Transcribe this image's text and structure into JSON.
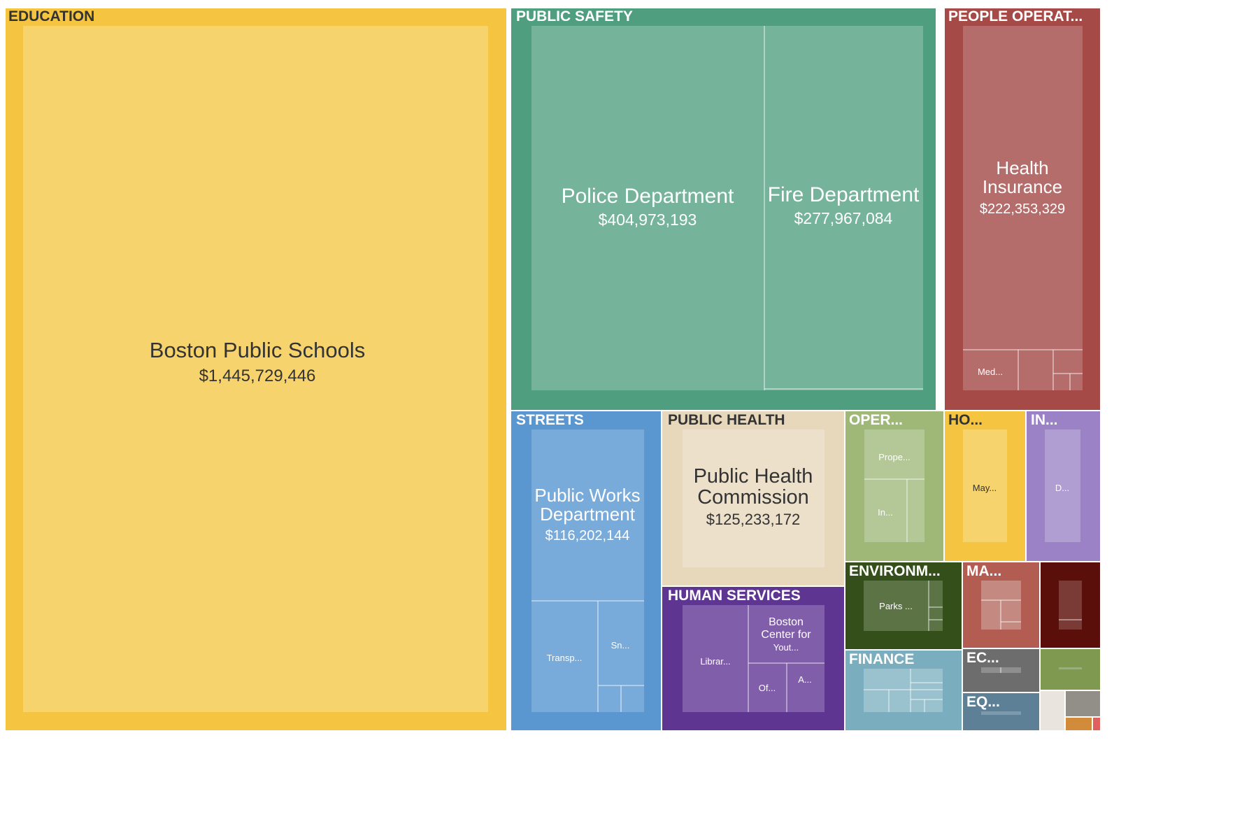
{
  "chart_data": {
    "type": "treemap",
    "groups": [
      {
        "name": "EDUCATION",
        "color": "#f5c542",
        "leaf_color": "#f6d36c",
        "text_color": "#333333",
        "items": [
          {
            "name": "Boston Public Schools",
            "value": "$1,445,729,446"
          }
        ]
      },
      {
        "name": "PUBLIC SAFETY",
        "color": "#4f9e80",
        "leaf_color": "#75b39b",
        "text_color": "#ffffff",
        "items": [
          {
            "name": "Police Department",
            "value": "$404,973,193"
          },
          {
            "name": "Fire Department",
            "value": "$277,967,084"
          }
        ]
      },
      {
        "name": "PEOPLE OPERAT...",
        "color": "#a64a48",
        "leaf_color": "#b56d6b",
        "text_color": "#ffffff",
        "items": [
          {
            "name": "Health Insurance",
            "value": "$222,353,329"
          },
          {
            "name": "Med..."
          }
        ]
      },
      {
        "name": "STREETS",
        "color": "#5a96d0",
        "leaf_color": "#78aada",
        "text_color": "#ffffff",
        "items": [
          {
            "name": "Public Works Department",
            "value": "$116,202,144"
          },
          {
            "name": "Transp..."
          },
          {
            "name": "Sn..."
          }
        ]
      },
      {
        "name": "PUBLIC HEALTH",
        "color": "#e8d8bb",
        "leaf_color": "#ede0cb",
        "text_color": "#333333",
        "items": [
          {
            "name": "Public Health Commission",
            "value": "$125,233,172"
          }
        ]
      },
      {
        "name": "HUMAN SERVICES",
        "color": "#5e3591",
        "leaf_color": "#805ea9",
        "text_color": "#ffffff",
        "items": [
          {
            "name": "Librar..."
          },
          {
            "name": "Boston Center for Yout..."
          },
          {
            "name": "Of..."
          },
          {
            "name": "A..."
          }
        ]
      },
      {
        "name": "OPER...",
        "color": "#9fb878",
        "leaf_color": "#b4c797",
        "text_color": "#ffffff",
        "items": [
          {
            "name": "Prope..."
          },
          {
            "name": "In..."
          }
        ]
      },
      {
        "name": "HO...",
        "color": "#f5c542",
        "leaf_color": "#f6d36c",
        "text_color": "#333333",
        "items": [
          {
            "name": "May..."
          }
        ]
      },
      {
        "name": "IN...",
        "color": "#9b82c6",
        "leaf_color": "#b09ed2",
        "text_color": "#ffffff",
        "items": [
          {
            "name": "D..."
          }
        ]
      },
      {
        "name": "ENVIRONM...",
        "color": "#344f1a",
        "leaf_color": "#5c7346",
        "text_color": "#ffffff",
        "items": [
          {
            "name": "Parks ..."
          }
        ]
      },
      {
        "name": "MA...",
        "color": "#b35d52",
        "leaf_color": "#c48a82",
        "text_color": "#ffffff",
        "items": []
      },
      {
        "name": "FINANCE",
        "color": "#7aadbe",
        "leaf_color": "#99c1ce",
        "text_color": "#ffffff",
        "items": []
      },
      {
        "name": "EC...",
        "color": "#6d6d6d",
        "leaf_color": "#8e8e8e",
        "text_color": "#ffffff",
        "items": []
      },
      {
        "name": "EQ...",
        "color": "#5d8097",
        "leaf_color": "#7d99ac",
        "text_color": "#ffffff",
        "items": []
      },
      {
        "name": "",
        "color": "#5a0f0a",
        "leaf_color": "#7a3a35",
        "text_color": "#ffffff",
        "items": []
      },
      {
        "name": "",
        "color": "#7f9a50",
        "leaf_color": "#9ab07a",
        "text_color": "#ffffff",
        "items": []
      },
      {
        "name": "",
        "color": "#e9e5de",
        "leaf_color": "#eeebe5",
        "text_color": "#333333",
        "items": []
      },
      {
        "name": "",
        "color": "#928f89",
        "leaf_color": "#a7a49f",
        "text_color": "#ffffff",
        "items": []
      },
      {
        "name": "",
        "color": "#d18b3a",
        "leaf_color": "#d99e5a",
        "text_color": "#ffffff",
        "items": []
      },
      {
        "name": "",
        "color": "#e06060",
        "leaf_color": "#e68080",
        "text_color": "#ffffff",
        "items": []
      }
    ]
  }
}
